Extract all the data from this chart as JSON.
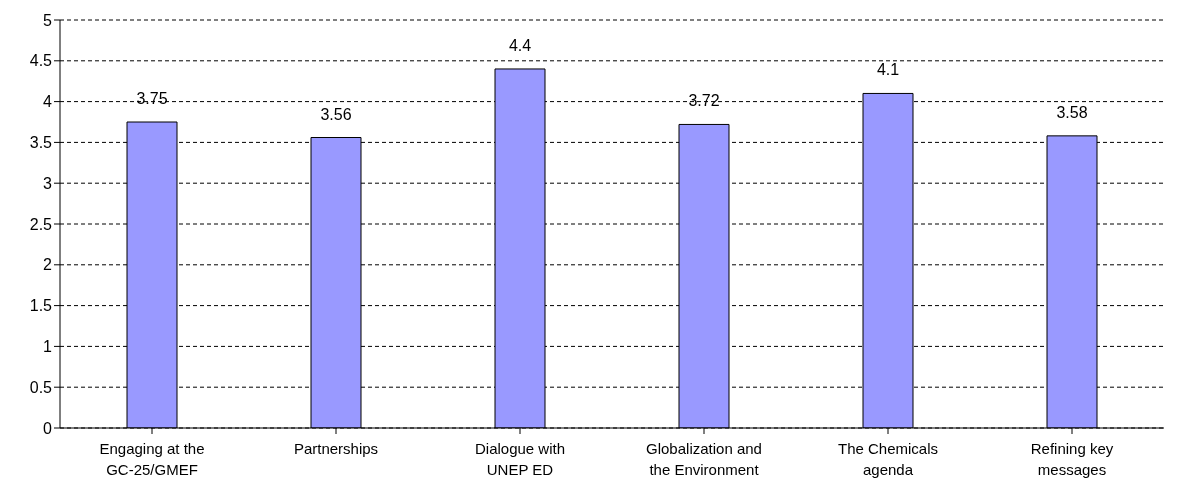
{
  "chart_data": {
    "type": "bar",
    "categories": [
      "Engaging at the GC-25/GMEF",
      "Partnerships",
      "Dialogue with UNEP ED",
      "Globalization and the Environment",
      "The Chemicals agenda",
      "Refining key messages"
    ],
    "values": [
      3.75,
      3.56,
      4.4,
      3.72,
      4.1,
      3.58
    ],
    "color": "#9999ff",
    "ylim": [
      0,
      5
    ],
    "yticks": [
      0,
      0.5,
      1,
      1.5,
      2,
      2.5,
      3,
      3.5,
      4,
      4.5,
      5
    ],
    "grid": "y",
    "data_labels": true,
    "legend": false
  }
}
